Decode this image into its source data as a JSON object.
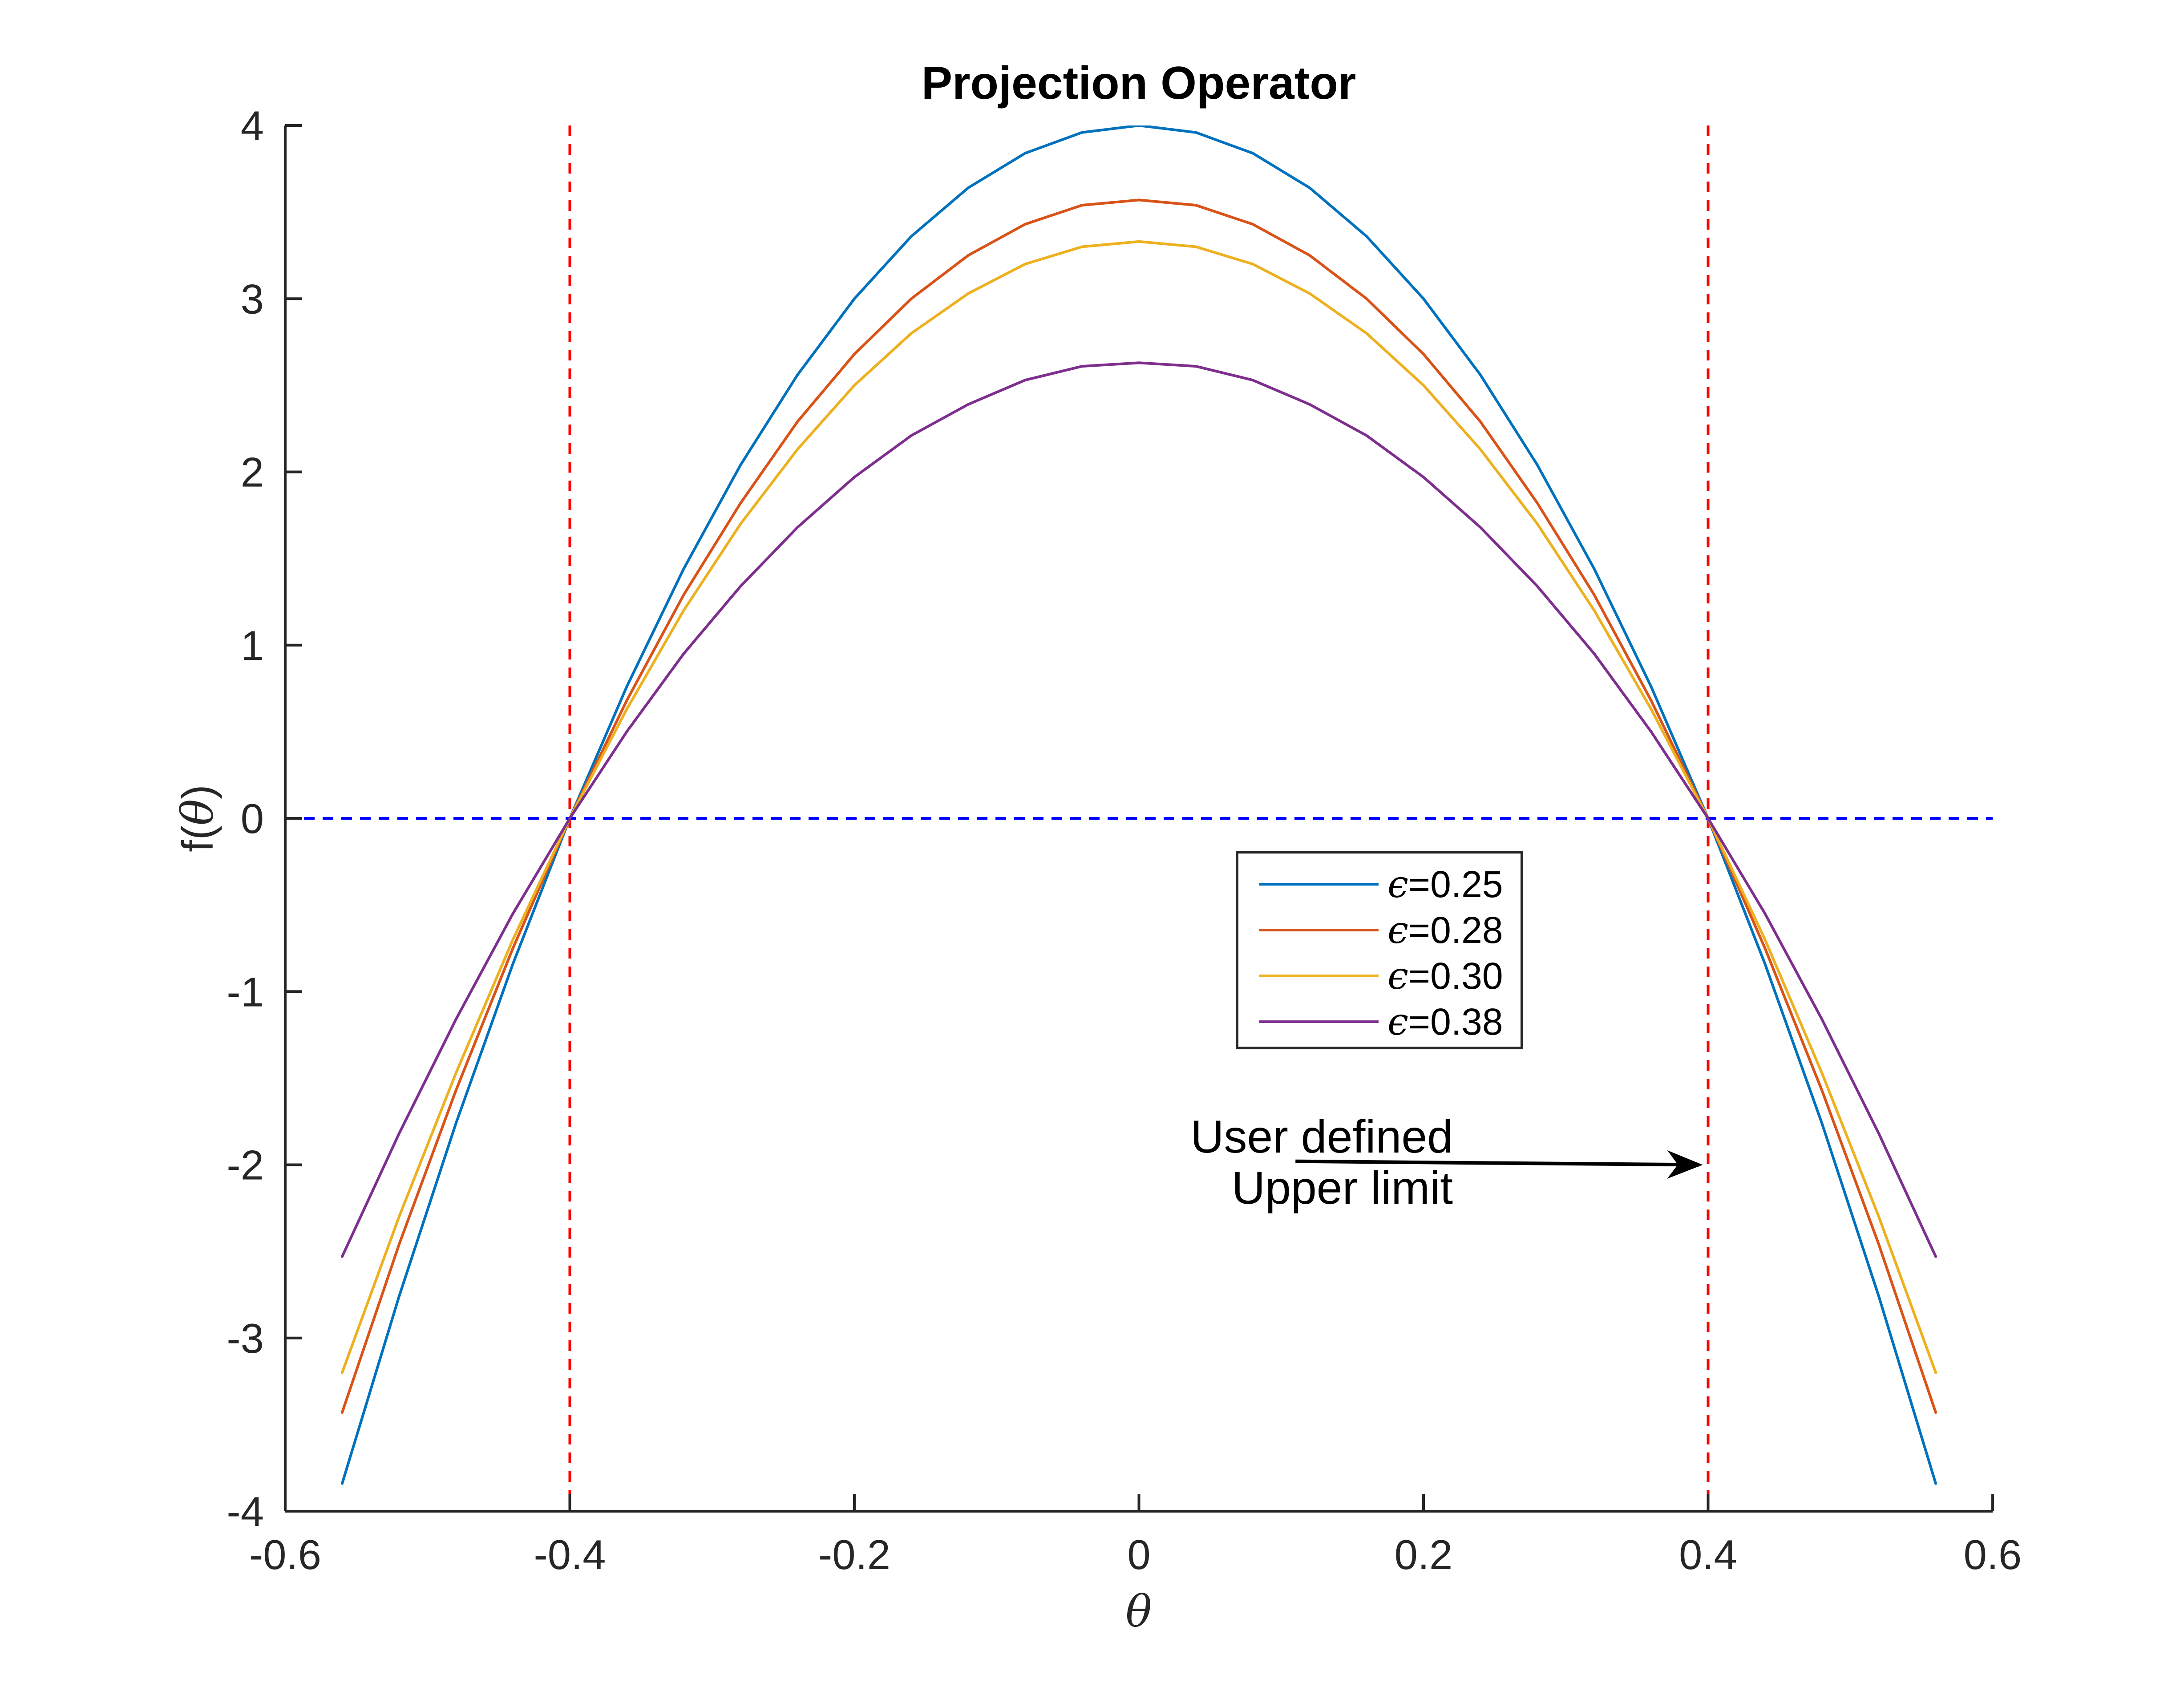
{
  "chart_data": {
    "type": "line",
    "title": "Projection Operator",
    "xlabel": "θ",
    "ylabel_prefix": "f(",
    "ylabel_symbol": "θ",
    "ylabel_suffix": ")",
    "xlim": [
      -0.6,
      0.6
    ],
    "ylim": [
      -4,
      4
    ],
    "xticks": [
      -0.6,
      -0.4,
      -0.2,
      0,
      0.2,
      0.4,
      0.6
    ],
    "xtick_labels": [
      "-0.6",
      "-0.4",
      "-0.2",
      "0",
      "0.2",
      "0.4",
      "0.6"
    ],
    "yticks": [
      -4,
      -3,
      -2,
      -1,
      0,
      1,
      2,
      3,
      4
    ],
    "ytick_labels": [
      "-4",
      "-3",
      "-2",
      "-1",
      "0",
      "1",
      "2",
      "3",
      "4"
    ],
    "grid": false,
    "legend_position": "center-right",
    "x": [
      -0.56,
      -0.52,
      -0.48,
      -0.44,
      -0.4,
      -0.36,
      -0.32,
      -0.28,
      -0.24,
      -0.2,
      -0.16,
      -0.12,
      -0.08,
      -0.04,
      0.0,
      0.04,
      0.08,
      0.12,
      0.16,
      0.2,
      0.24,
      0.28,
      0.32,
      0.36,
      0.4,
      0.44,
      0.48,
      0.52,
      0.56
    ],
    "series": [
      {
        "name": "ϵ=0.25",
        "epsilon": "0.25",
        "color": "#0072BD",
        "values": [
          -3.84,
          -2.76,
          -1.76,
          -0.84,
          0.0,
          0.76,
          1.44,
          2.04,
          2.56,
          3.0,
          3.36,
          3.64,
          3.84,
          3.96,
          4.0,
          3.96,
          3.84,
          3.64,
          3.36,
          3.0,
          2.56,
          2.04,
          1.44,
          0.76,
          0.0,
          -0.84,
          -1.76,
          -2.76,
          -3.84
        ]
      },
      {
        "name": "ϵ=0.28",
        "epsilon": "0.28",
        "color": "#D95319",
        "values": [
          -3.43,
          -2.46,
          -1.57,
          -0.75,
          0.0,
          0.68,
          1.29,
          1.82,
          2.29,
          2.68,
          3.0,
          3.25,
          3.43,
          3.54,
          3.57,
          3.54,
          3.43,
          3.25,
          3.0,
          2.68,
          2.29,
          1.82,
          1.29,
          0.68,
          0.0,
          -0.75,
          -1.57,
          -2.46,
          -3.43
        ]
      },
      {
        "name": "ϵ=0.30",
        "epsilon": "0.30",
        "color": "#EDB120",
        "values": [
          -3.2,
          -2.3,
          -1.47,
          -0.7,
          0.0,
          0.63,
          1.2,
          1.7,
          2.13,
          2.5,
          2.8,
          3.03,
          3.2,
          3.3,
          3.33,
          3.3,
          3.2,
          3.03,
          2.8,
          2.5,
          2.13,
          1.7,
          1.2,
          0.63,
          0.0,
          -0.7,
          -1.47,
          -2.3,
          -3.2
        ]
      },
      {
        "name": "ϵ=0.38",
        "epsilon": "0.38",
        "color": "#7E2F8E",
        "values": [
          -2.53,
          -1.82,
          -1.16,
          -0.55,
          0.0,
          0.5,
          0.95,
          1.34,
          1.68,
          1.97,
          2.21,
          2.39,
          2.53,
          2.61,
          2.63,
          2.61,
          2.53,
          2.39,
          2.21,
          1.97,
          1.68,
          1.34,
          0.95,
          0.5,
          0.0,
          -0.55,
          -1.16,
          -1.82,
          -2.53
        ]
      }
    ],
    "reference_lines": [
      {
        "orientation": "vertical",
        "value": -0.4,
        "style": "dashed",
        "color": "#FF0000"
      },
      {
        "orientation": "vertical",
        "value": 0.4,
        "style": "dashed",
        "color": "#FF0000"
      },
      {
        "orientation": "horizontal",
        "value": 0,
        "x_range": [
          -0.6,
          0.6
        ],
        "style": "dashed",
        "color": "#0000FF"
      }
    ],
    "annotation": {
      "lines": [
        "User defined",
        "Upper limit"
      ],
      "arrow_to": {
        "x": 0.4,
        "y": -2.0
      },
      "arrow_from": {
        "x": 0.11,
        "y": -1.98
      }
    }
  }
}
